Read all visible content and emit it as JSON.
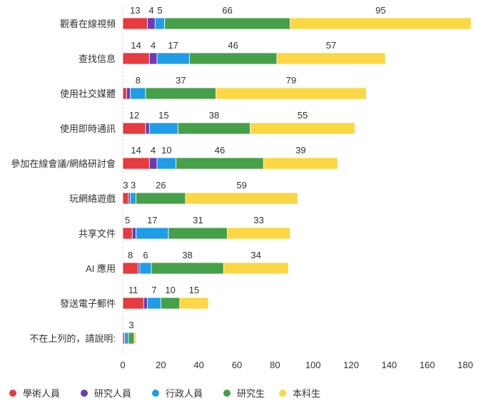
{
  "chart_data": {
    "type": "bar",
    "orientation": "horizontal",
    "stacked": true,
    "categories": [
      "觀看在線視頻",
      "查找信息",
      "使用社交媒體",
      "使用即時通訊",
      "參加在線會議/網絡研討會",
      "玩網絡遊戲",
      "共享文件",
      "AI 應用",
      "發送電子郵件",
      "不在上列的，請說明:"
    ],
    "series": [
      {
        "name": "學術人員",
        "color": "#e63b3f",
        "values": [
          13,
          14,
          2,
          12,
          14,
          3,
          5,
          8,
          11,
          1
        ]
      },
      {
        "name": "研究人員",
        "color": "#6a3bb5",
        "values": [
          4,
          4,
          2,
          2,
          4,
          1,
          2,
          1,
          2,
          0
        ]
      },
      {
        "name": "行政人員",
        "color": "#1f9de6",
        "values": [
          5,
          17,
          8,
          15,
          10,
          3,
          17,
          6,
          7,
          2
        ]
      },
      {
        "name": "研究生",
        "color": "#46a049",
        "values": [
          66,
          46,
          37,
          38,
          46,
          26,
          31,
          38,
          10,
          3
        ]
      },
      {
        "name": "本科生",
        "color": "#fbd743",
        "values": [
          95,
          57,
          79,
          55,
          39,
          59,
          33,
          34,
          15,
          1
        ]
      }
    ],
    "xticks": [
      0,
      20,
      40,
      60,
      80,
      100,
      120,
      140,
      160,
      180
    ],
    "xlim": [
      0,
      180
    ],
    "legend_position": "bottom-left",
    "grid": false
  }
}
